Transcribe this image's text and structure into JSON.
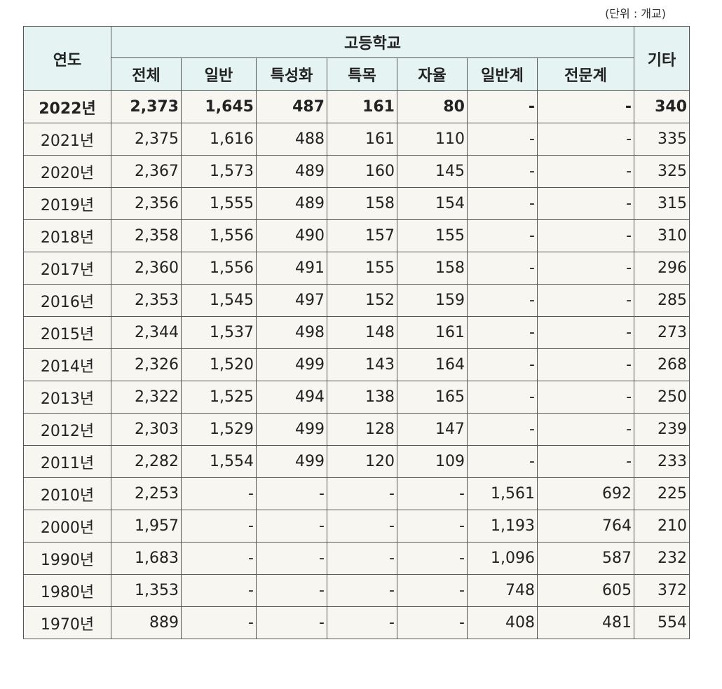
{
  "unit_note": "(단위 : 개교)",
  "headers": {
    "year": "연도",
    "group": "고등학교",
    "cols": [
      "전체",
      "일반",
      "특성화",
      "특목",
      "자율",
      "일반계",
      "전문계"
    ],
    "other": "기타"
  },
  "rows": [
    {
      "year": "2022년",
      "cells": [
        "2,373",
        "1,645",
        "487",
        "161",
        "80",
        "-",
        "-",
        "340"
      ]
    },
    {
      "year": "2021년",
      "cells": [
        "2,375",
        "1,616",
        "488",
        "161",
        "110",
        "-",
        "-",
        "335"
      ]
    },
    {
      "year": "2020년",
      "cells": [
        "2,367",
        "1,573",
        "489",
        "160",
        "145",
        "-",
        "-",
        "325"
      ]
    },
    {
      "year": "2019년",
      "cells": [
        "2,356",
        "1,555",
        "489",
        "158",
        "154",
        "-",
        "-",
        "315"
      ]
    },
    {
      "year": "2018년",
      "cells": [
        "2,358",
        "1,556",
        "490",
        "157",
        "155",
        "-",
        "-",
        "310"
      ]
    },
    {
      "year": "2017년",
      "cells": [
        "2,360",
        "1,556",
        "491",
        "155",
        "158",
        "-",
        "-",
        "296"
      ]
    },
    {
      "year": "2016년",
      "cells": [
        "2,353",
        "1,545",
        "497",
        "152",
        "159",
        "-",
        "-",
        "285"
      ]
    },
    {
      "year": "2015년",
      "cells": [
        "2,344",
        "1,537",
        "498",
        "148",
        "161",
        "-",
        "-",
        "273"
      ]
    },
    {
      "year": "2014년",
      "cells": [
        "2,326",
        "1,520",
        "499",
        "143",
        "164",
        "-",
        "-",
        "268"
      ]
    },
    {
      "year": "2013년",
      "cells": [
        "2,322",
        "1,525",
        "494",
        "138",
        "165",
        "-",
        "-",
        "250"
      ]
    },
    {
      "year": "2012년",
      "cells": [
        "2,303",
        "1,529",
        "499",
        "128",
        "147",
        "-",
        "-",
        "239"
      ]
    },
    {
      "year": "2011년",
      "cells": [
        "2,282",
        "1,554",
        "499",
        "120",
        "109",
        "-",
        "-",
        "233"
      ]
    },
    {
      "year": "2010년",
      "cells": [
        "2,253",
        "-",
        "-",
        "-",
        "-",
        "1,561",
        "692",
        "225"
      ]
    },
    {
      "year": "2000년",
      "cells": [
        "1,957",
        "-",
        "-",
        "-",
        "-",
        "1,193",
        "764",
        "210"
      ]
    },
    {
      "year": "1990년",
      "cells": [
        "1,683",
        "-",
        "-",
        "-",
        "-",
        "1,096",
        "587",
        "232"
      ]
    },
    {
      "year": "1980년",
      "cells": [
        "1,353",
        "-",
        "-",
        "-",
        "-",
        "748",
        "605",
        "372"
      ]
    },
    {
      "year": "1970년",
      "cells": [
        "889",
        "-",
        "-",
        "-",
        "-",
        "408",
        "481",
        "554"
      ]
    }
  ]
}
